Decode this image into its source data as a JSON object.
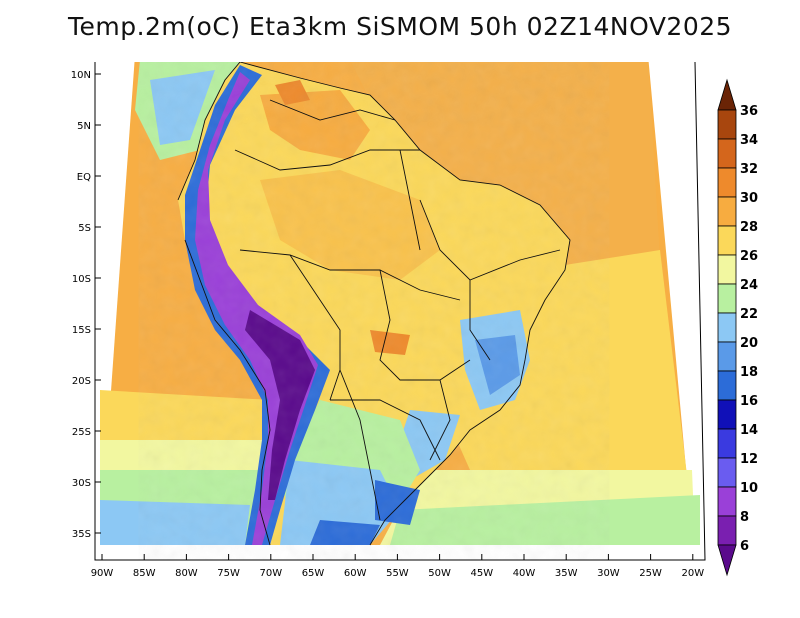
{
  "title": "Temp.2m(oC) Eta3km SiSMOM 50h 02Z14NOV2025",
  "lat_labels": [
    "10N",
    "5N",
    "EQ",
    "5S",
    "10S",
    "15S",
    "20S",
    "25S",
    "30S",
    "35S"
  ],
  "lon_labels": [
    "90W",
    "85W",
    "80W",
    "75W",
    "70W",
    "65W",
    "60W",
    "55W",
    "50W",
    "45W",
    "40W",
    "35W",
    "30W",
    "25W",
    "20W"
  ],
  "colorbar": {
    "labels": [
      "6",
      "8",
      "10",
      "12",
      "14",
      "16",
      "18",
      "20",
      "22",
      "24",
      "26",
      "28",
      "30",
      "32",
      "34",
      "36"
    ],
    "colors": [
      "#5a0a8c",
      "#7a1fb0",
      "#9a40d8",
      "#6a5cf0",
      "#3a3ae0",
      "#1010b8",
      "#2c6cd8",
      "#5a9ae8",
      "#8cc8f4",
      "#b8f0a0",
      "#f2f7a0",
      "#fbd85a",
      "#f7ac40",
      "#ee8a2c",
      "#d4661c",
      "#a8460e",
      "#6a2406"
    ]
  }
}
